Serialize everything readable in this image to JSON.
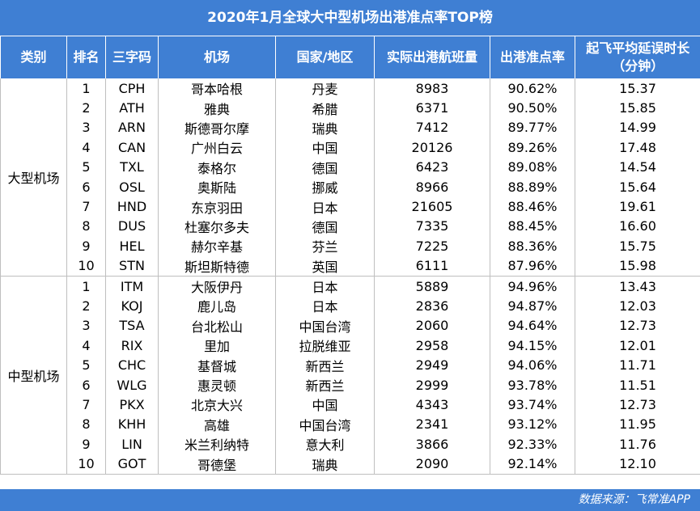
{
  "title": "2020年1月全球大中型机场出港准点率TOP榜",
  "table": {
    "header": [
      "类别",
      "排名",
      "三字码",
      "机场",
      "国家/地区",
      "实际出港航班量",
      "出港准点率",
      "起飞平均延误时长\n（分钟）"
    ],
    "groups": [
      {
        "label": "大型机场",
        "rows": [
          [
            "1",
            "CPH",
            "哥本哈根",
            "丹麦",
            "8983",
            "90.62%",
            "15.37"
          ],
          [
            "2",
            "ATH",
            "雅典",
            "希腊",
            "6371",
            "90.50%",
            "15.85"
          ],
          [
            "3",
            "ARN",
            "斯德哥尔摩",
            "瑞典",
            "7412",
            "89.77%",
            "14.99"
          ],
          [
            "4",
            "CAN",
            "广州白云",
            "中国",
            "20126",
            "89.26%",
            "17.48"
          ],
          [
            "5",
            "TXL",
            "泰格尔",
            "德国",
            "6423",
            "89.08%",
            "14.54"
          ],
          [
            "6",
            "OSL",
            "奥斯陆",
            "挪威",
            "8966",
            "88.89%",
            "15.64"
          ],
          [
            "7",
            "HND",
            "东京羽田",
            "日本",
            "21605",
            "88.46%",
            "19.61"
          ],
          [
            "8",
            "DUS",
            "杜塞尔多夫",
            "德国",
            "7335",
            "88.45%",
            "16.60"
          ],
          [
            "9",
            "HEL",
            "赫尔辛基",
            "芬兰",
            "7225",
            "88.36%",
            "15.75"
          ],
          [
            "10",
            "STN",
            "斯坦斯特德",
            "英国",
            "6111",
            "87.96%",
            "15.98"
          ]
        ]
      },
      {
        "label": "中型机场",
        "rows": [
          [
            "1",
            "ITM",
            "大阪伊丹",
            "日本",
            "5889",
            "94.96%",
            "13.43"
          ],
          [
            "2",
            "KOJ",
            "鹿儿岛",
            "日本",
            "2836",
            "94.87%",
            "12.03"
          ],
          [
            "3",
            "TSA",
            "台北松山",
            "中国台湾",
            "2060",
            "94.64%",
            "12.73"
          ],
          [
            "4",
            "RIX",
            "里加",
            "拉脱维亚",
            "2958",
            "94.15%",
            "12.01"
          ],
          [
            "5",
            "CHC",
            "基督城",
            "新西兰",
            "2949",
            "94.06%",
            "11.71"
          ],
          [
            "6",
            "WLG",
            "惠灵顿",
            "新西兰",
            "2999",
            "93.78%",
            "11.51"
          ],
          [
            "7",
            "PKX",
            "北京大兴",
            "中国",
            "4343",
            "93.74%",
            "12.73"
          ],
          [
            "8",
            "KHH",
            "高雄",
            "中国台湾",
            "2341",
            "93.12%",
            "11.95"
          ],
          [
            "9",
            "LIN",
            "米兰利纳特",
            "意大利",
            "3866",
            "92.33%",
            "11.76"
          ],
          [
            "10",
            "GOT",
            "哥德堡",
            "瑞典",
            "2090",
            "92.14%",
            "12.10"
          ]
        ]
      }
    ]
  },
  "footer": "数据来源：飞常准APP"
}
